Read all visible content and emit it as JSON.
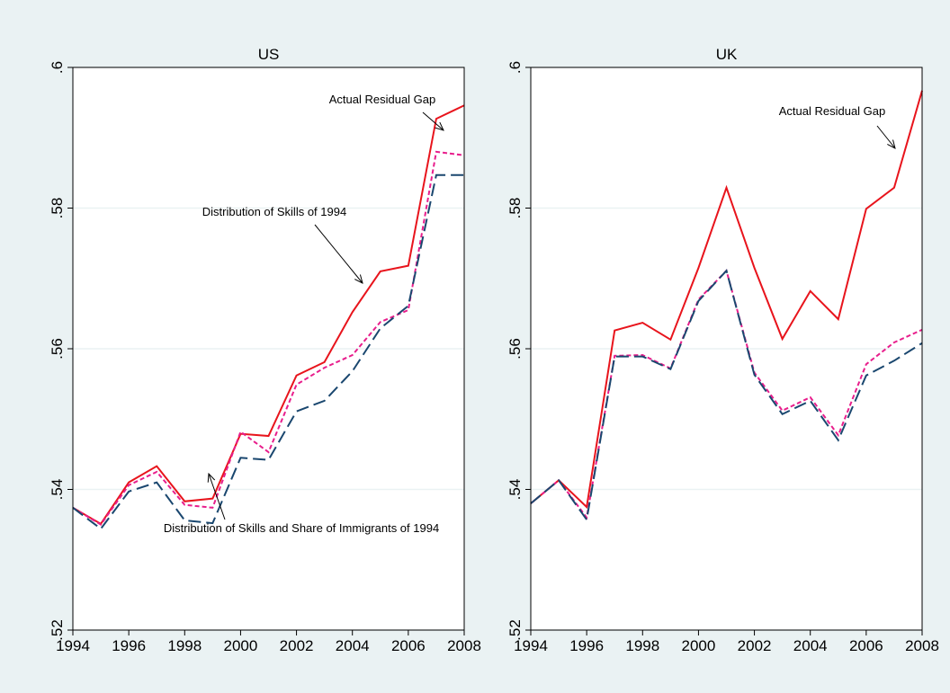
{
  "chart_data": [
    {
      "type": "line",
      "title": "US",
      "x": [
        1994,
        1995,
        1996,
        1997,
        1998,
        1999,
        2000,
        2001,
        2002,
        2003,
        2004,
        2005,
        2006,
        2007,
        2008
      ],
      "series": [
        {
          "color": "#e8141c",
          "dash": "none",
          "values": [
            0.5374,
            0.5351,
            0.541,
            0.5433,
            0.5383,
            0.5387,
            0.5479,
            0.5476,
            0.5562,
            0.5581,
            0.5652,
            0.571,
            0.5718,
            0.5927,
            0.5946
          ]
        },
        {
          "color": "#e81e8c",
          "dash": "5 3",
          "values": [
            0.5374,
            0.535,
            0.5406,
            0.5425,
            0.5378,
            0.5374,
            0.5482,
            0.5453,
            0.5549,
            0.5573,
            0.5591,
            0.5638,
            0.5655,
            0.588,
            0.5875
          ]
        },
        {
          "color": "#1a476f",
          "dash": "14 6",
          "values": [
            0.5374,
            0.5344,
            0.5397,
            0.541,
            0.5356,
            0.5352,
            0.5445,
            0.5442,
            0.5511,
            0.5526,
            0.5568,
            0.5629,
            0.5661,
            0.5847,
            0.5847
          ]
        }
      ],
      "annotations": [
        "Actual Residual Gap",
        "Distribution of Skills of 1994",
        "Distribution of Skills and Share of Immigrants of 1994"
      ],
      "xlim": [
        1994,
        2008
      ],
      "xticks": [
        1994,
        1996,
        1998,
        2000,
        2002,
        2004,
        2006,
        2008
      ],
      "ylim": [
        0.52,
        0.6
      ],
      "yticks": [
        {
          "value": 0.52,
          "label": ".52"
        },
        {
          "value": 0.54,
          "label": ".54"
        },
        {
          "value": 0.56,
          "label": ".56"
        },
        {
          "value": 0.58,
          "label": ".58"
        },
        {
          "value": 0.6,
          "label": ".6"
        }
      ],
      "grid": true
    },
    {
      "type": "line",
      "title": "UK",
      "x": [
        1994,
        1995,
        1996,
        1997,
        1998,
        1999,
        2000,
        2001,
        2002,
        2003,
        2004,
        2005,
        2006,
        2007,
        2008
      ],
      "series": [
        {
          "color": "#e8141c",
          "dash": "none",
          "values": [
            0.538,
            0.5413,
            0.5375,
            0.5626,
            0.5637,
            0.5613,
            0.5715,
            0.5829,
            0.5715,
            0.5614,
            0.5682,
            0.5642,
            0.5799,
            0.5829,
            0.5967
          ]
        },
        {
          "color": "#e81e8c",
          "dash": "5 3",
          "values": [
            0.538,
            0.5413,
            0.536,
            0.559,
            0.5591,
            0.5572,
            0.567,
            0.5711,
            0.5566,
            0.5512,
            0.5531,
            0.5477,
            0.5578,
            0.5609,
            0.5627
          ]
        },
        {
          "color": "#1a476f",
          "dash": "14 6",
          "values": [
            0.538,
            0.5413,
            0.5357,
            0.5589,
            0.5589,
            0.5571,
            0.5668,
            0.5711,
            0.5563,
            0.5507,
            0.5526,
            0.547,
            0.5562,
            0.5583,
            0.5608
          ]
        }
      ],
      "annotations": [
        "Actual Residual Gap"
      ],
      "xlim": [
        1994,
        2008
      ],
      "xticks": [
        1994,
        1996,
        1998,
        2000,
        2002,
        2004,
        2006,
        2008
      ],
      "ylim": [
        0.52,
        0.6
      ],
      "yticks": [
        {
          "value": 0.52,
          "label": ".52"
        },
        {
          "value": 0.54,
          "label": ".54"
        },
        {
          "value": 0.56,
          "label": ".56"
        },
        {
          "value": 0.58,
          "label": ".58"
        },
        {
          "value": 0.6,
          "label": ".6"
        }
      ],
      "grid": true
    }
  ]
}
